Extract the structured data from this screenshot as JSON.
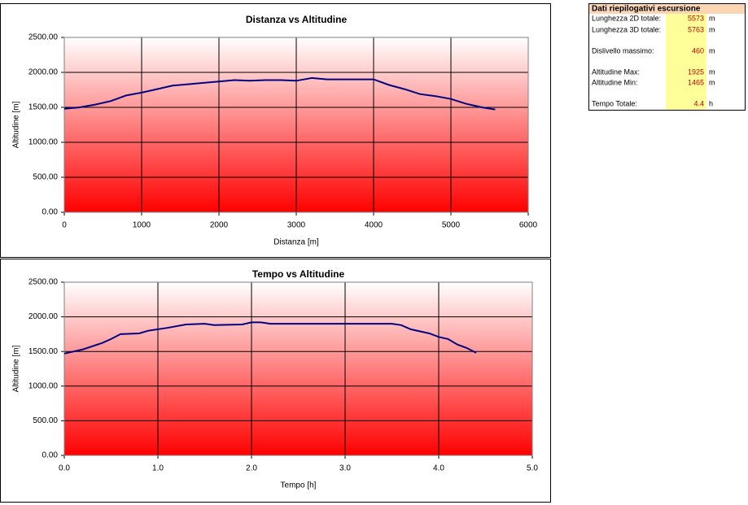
{
  "chart_data": [
    {
      "type": "line",
      "title": "Distanza vs Altitudine",
      "xlabel": "Distanza [m]",
      "ylabel": "Altitudine [m]",
      "x": [
        0,
        200,
        400,
        600,
        800,
        1000,
        1200,
        1400,
        1600,
        1800,
        2000,
        2200,
        2400,
        2600,
        2800,
        3000,
        3200,
        3400,
        3600,
        3800,
        4000,
        4200,
        4400,
        4600,
        4800,
        5000,
        5200,
        5400,
        5573
      ],
      "values": [
        1480,
        1500,
        1540,
        1590,
        1670,
        1710,
        1760,
        1810,
        1830,
        1850,
        1870,
        1890,
        1880,
        1890,
        1890,
        1880,
        1920,
        1900,
        1900,
        1900,
        1900,
        1820,
        1760,
        1690,
        1660,
        1620,
        1550,
        1500,
        1470
      ],
      "color": "#000080",
      "xlim": [
        0,
        6000
      ],
      "xticks": [
        0,
        1000,
        2000,
        3000,
        4000,
        5000,
        6000
      ],
      "ylim": [
        0,
        2500
      ],
      "yticks": [
        {
          "value": 0,
          "label": "0.00"
        },
        {
          "value": 500,
          "label": "500.00"
        },
        {
          "value": 1000,
          "label": "1000.00"
        },
        {
          "value": 1500,
          "label": "1500.00"
        },
        {
          "value": 2000,
          "label": "2000.00"
        },
        {
          "value": 2500,
          "label": "2500.00"
        }
      ],
      "grid": true
    },
    {
      "type": "line",
      "title": "Tempo vs Altitudine",
      "xlabel": "Tempo [h]",
      "ylabel": "Altitudine [m]",
      "x": [
        0,
        0.2,
        0.4,
        0.5,
        0.6,
        0.8,
        0.9,
        1.1,
        1.3,
        1.5,
        1.6,
        1.9,
        2.0,
        2.1,
        2.2,
        2.6,
        3.0,
        3.5,
        3.6,
        3.7,
        3.9,
        4.0,
        4.1,
        4.2,
        4.3,
        4.4
      ],
      "values": [
        1470,
        1530,
        1620,
        1680,
        1750,
        1760,
        1800,
        1840,
        1890,
        1900,
        1880,
        1890,
        1920,
        1920,
        1900,
        1900,
        1900,
        1900,
        1880,
        1820,
        1760,
        1710,
        1680,
        1600,
        1550,
        1480
      ],
      "color": "#000080",
      "xlim": [
        0,
        5
      ],
      "xticks": [
        {
          "value": 0,
          "label": "0.0"
        },
        {
          "value": 1,
          "label": "1.0"
        },
        {
          "value": 2,
          "label": "2.0"
        },
        {
          "value": 3,
          "label": "3.0"
        },
        {
          "value": 4,
          "label": "4.0"
        },
        {
          "value": 5,
          "label": "5.0"
        }
      ],
      "ylim": [
        0,
        2500
      ],
      "yticks": [
        {
          "value": 0,
          "label": "0.00"
        },
        {
          "value": 500,
          "label": "500.00"
        },
        {
          "value": 1000,
          "label": "1000.00"
        },
        {
          "value": 1500,
          "label": "1500.00"
        },
        {
          "value": 2000,
          "label": "2000.00"
        },
        {
          "value": 2500,
          "label": "2500.00"
        }
      ],
      "grid": true
    }
  ],
  "summary": {
    "title": "Dati riepilogativi escursione",
    "rows": [
      [
        "Lunghezza 2D totale:",
        5573,
        "m"
      ],
      [
        "Lunghezza 3D totale:",
        5763,
        "m"
      ],
      [
        "Dislivello massimo:",
        460,
        "m"
      ],
      [
        "Altitudine Max:",
        1925,
        "m"
      ],
      [
        "Altitudine Min:",
        1465,
        "m"
      ],
      [
        "Tempo Totale:",
        4.4,
        "h"
      ]
    ]
  }
}
